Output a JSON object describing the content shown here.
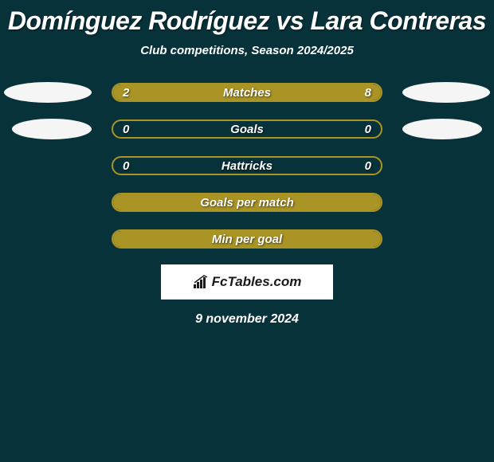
{
  "title": "Domínguez Rodríguez vs Lara Contreras",
  "subtitle": "Club competitions, Season 2024/2025",
  "date": "9 november 2024",
  "logo_text": "FcTables.com",
  "colors": {
    "background": "#08323a",
    "bar_fill": "#a99425",
    "bar_border": "#a99425",
    "ellipse": "#f5f5f5",
    "text": "#ffffff",
    "logo_bg": "#ffffff",
    "logo_text": "#1a1a1a"
  },
  "stats": [
    {
      "label": "Matches",
      "left_value": "2",
      "right_value": "8",
      "left_pct": 20,
      "right_pct": 80,
      "show_ellipses": true,
      "ellipse_offset": "normal"
    },
    {
      "label": "Goals",
      "left_value": "0",
      "right_value": "0",
      "left_pct": 0,
      "right_pct": 0,
      "show_ellipses": true,
      "ellipse_offset": "inset"
    },
    {
      "label": "Hattricks",
      "left_value": "0",
      "right_value": "0",
      "left_pct": 0,
      "right_pct": 0,
      "show_ellipses": false
    },
    {
      "label": "Goals per match",
      "left_value": "",
      "right_value": "",
      "left_pct": 100,
      "right_pct": 0,
      "full": true,
      "show_ellipses": false
    },
    {
      "label": "Min per goal",
      "left_value": "",
      "right_value": "",
      "left_pct": 100,
      "right_pct": 0,
      "full": true,
      "show_ellipses": false
    }
  ]
}
